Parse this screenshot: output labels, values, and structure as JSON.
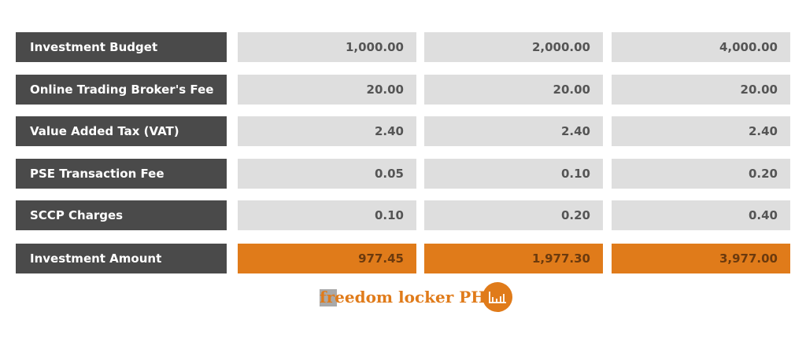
{
  "table": {
    "rows": [
      {
        "label": "Investment Budget",
        "values": [
          "1,000.00",
          "2,000.00",
          "4,000.00"
        ]
      },
      {
        "label": "Online Trading Broker's Fee",
        "values": [
          "20.00",
          "20.00",
          "20.00"
        ]
      },
      {
        "label": "Value Added Tax (VAT)",
        "values": [
          "2.40",
          "2.40",
          "2.40"
        ]
      },
      {
        "label": "PSE Transaction Fee",
        "values": [
          "0.05",
          "0.10",
          "0.20"
        ]
      },
      {
        "label": "SCCP Charges",
        "values": [
          "0.10",
          "0.20",
          "0.40"
        ]
      },
      {
        "label": "Investment Amount",
        "values": [
          "977.45",
          "1,977.30",
          "3,977.00"
        ]
      }
    ]
  },
  "logo": {
    "text": "freedom locker PH"
  }
}
